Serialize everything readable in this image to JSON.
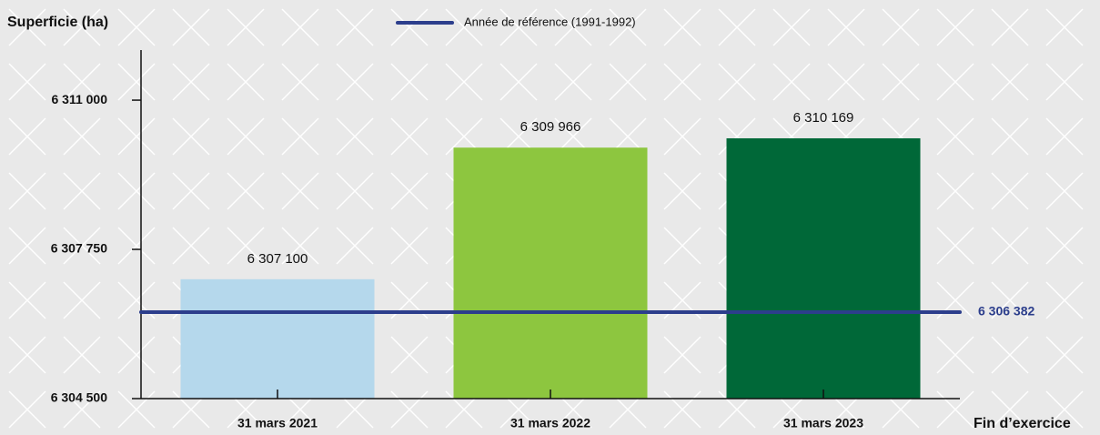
{
  "chart_data": {
    "type": "bar",
    "y_label": "Superficie (ha)",
    "x_label": "Fin d’exercice",
    "categories": [
      "31 mars 2021",
      "31 mars 2022",
      "31 mars 2023"
    ],
    "values": [
      6307100,
      6309966,
      6310169
    ],
    "value_labels": [
      "6 307 100",
      "6 309 966",
      "6 310 169"
    ],
    "colors": [
      "#b5d8ec",
      "#8dc63f",
      "#006838"
    ],
    "ylim": [
      6304500,
      6312000
    ],
    "yticks": [
      {
        "value": 6304500,
        "label": "6 304 500"
      },
      {
        "value": 6307750,
        "label": "6 307 750"
      },
      {
        "value": 6311000,
        "label": "6 311 000"
      }
    ],
    "reference": {
      "name": "Année de référence (1991-1992)",
      "value": 6306382,
      "value_label": "6 306 382",
      "color": "#2c3e8c"
    }
  }
}
